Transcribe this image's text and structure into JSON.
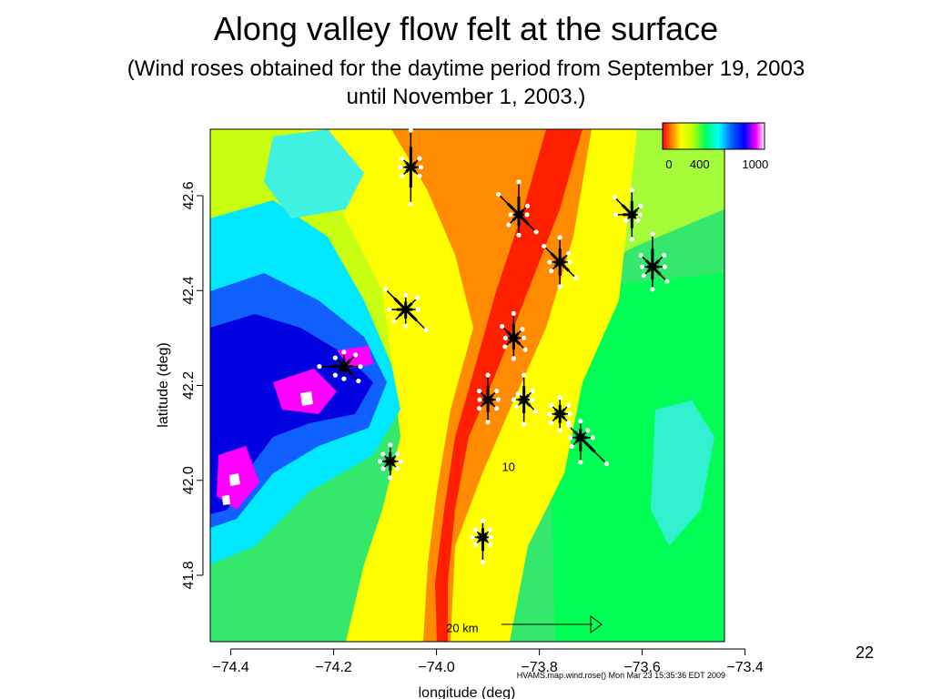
{
  "slide": {
    "title": "Along valley flow felt at the surface",
    "subtitle_line1": "(Wind roses obtained for the daytime period from September 19, 2003",
    "subtitle_line2": "until November 1, 2003.)",
    "page_number": "22"
  },
  "colors": {
    "terrain_scale": [
      "#ff0000",
      "#ff7f00",
      "#ffff00",
      "#b4ff00",
      "#00ff60",
      "#00ffff",
      "#0060ff",
      "#0000ff",
      "#ff00ff",
      "#ffffff"
    ],
    "wind_rose_line": "#000000",
    "wind_rose_dot": "#ffffff"
  },
  "chart_data": {
    "type": "map",
    "xlabel": "longitude (deg)",
    "ylabel": "latitude (deg)",
    "xlim": [
      -74.44,
      -73.44
    ],
    "ylim": [
      41.66,
      42.74
    ],
    "xticks": [
      -74.4,
      -74.2,
      -74.0,
      -73.8,
      -73.6,
      -73.4
    ],
    "xtick_labels": [
      "−74.4",
      "−74.2",
      "−74.0",
      "−73.8",
      "−73.6",
      "−73.4"
    ],
    "yticks": [
      41.8,
      42.0,
      42.2,
      42.4,
      42.6
    ],
    "ytick_labels": [
      "41.8",
      "42.0",
      "42.2",
      "42.4",
      "42.6"
    ],
    "colorbar": {
      "ticks": [
        0,
        400,
        1000
      ],
      "tick_labels": [
        "0",
        "400",
        "1000"
      ],
      "range": [
        0,
        1100
      ]
    },
    "wind_roses": [
      {
        "lon": -74.05,
        "lat": 42.66,
        "petals": [
          0.9,
          0.3,
          0.25,
          0.3,
          0.9,
          0.3,
          0.25,
          0.3
        ]
      },
      {
        "lon": -73.84,
        "lat": 42.56,
        "petals": [
          0.8,
          0.3,
          0.2,
          0.6,
          0.5,
          0.35,
          0.2,
          0.7
        ]
      },
      {
        "lon": -73.76,
        "lat": 42.46,
        "petals": [
          0.6,
          0.3,
          0.25,
          0.55,
          0.6,
          0.3,
          0.25,
          0.55
        ]
      },
      {
        "lon": -73.62,
        "lat": 42.56,
        "petals": [
          0.6,
          0.3,
          0.2,
          0.2,
          0.6,
          0.2,
          0.4,
          0.6
        ]
      },
      {
        "lon": -73.58,
        "lat": 42.45,
        "petals": [
          0.8,
          0.4,
          0.3,
          0.5,
          0.55,
          0.3,
          0.25,
          0.4
        ]
      },
      {
        "lon": -74.06,
        "lat": 42.36,
        "petals": [
          0.35,
          0.4,
          0.3,
          0.7,
          0.4,
          0.4,
          0.4,
          0.7
        ]
      },
      {
        "lon": -74.18,
        "lat": 42.24,
        "petals": [
          0.35,
          0.4,
          0.4,
          0.5,
          0.3,
          0.3,
          0.6,
          0.3
        ]
      },
      {
        "lon": -73.85,
        "lat": 42.3,
        "petals": [
          0.6,
          0.3,
          0.25,
          0.4,
          0.5,
          0.3,
          0.2,
          0.4
        ]
      },
      {
        "lon": -73.9,
        "lat": 42.17,
        "petals": [
          0.6,
          0.3,
          0.25,
          0.3,
          0.55,
          0.3,
          0.2,
          0.3
        ]
      },
      {
        "lon": -73.83,
        "lat": 42.17,
        "petals": [
          0.6,
          0.3,
          0.2,
          0.4,
          0.6,
          0.25,
          0.25,
          0.2
        ]
      },
      {
        "lon": -73.76,
        "lat": 42.14,
        "petals": [
          0.4,
          0.3,
          0.25,
          0.3,
          0.4,
          0.3,
          0.25,
          0.3
        ]
      },
      {
        "lon": -73.72,
        "lat": 42.09,
        "petals": [
          0.4,
          0.25,
          0.3,
          0.9,
          0.6,
          0.3,
          0.25,
          0.4
        ]
      },
      {
        "lon": -74.09,
        "lat": 42.04,
        "petals": [
          0.4,
          0.25,
          0.25,
          0.25,
          0.4,
          0.25,
          0.25,
          0.25
        ]
      },
      {
        "lon": -73.91,
        "lat": 41.88,
        "petals": [
          0.4,
          0.25,
          0.2,
          0.25,
          0.6,
          0.25,
          0.25,
          0.25
        ]
      }
    ],
    "annotations": [
      {
        "text": "10",
        "lon": -73.86,
        "lat": 42.02
      },
      {
        "text": "20 km",
        "lon": -73.95,
        "lat": 41.68
      }
    ],
    "credit": "HVAMS.map.wind.rose()  Mon Mar 23 15:35:36 EDT 2009"
  }
}
